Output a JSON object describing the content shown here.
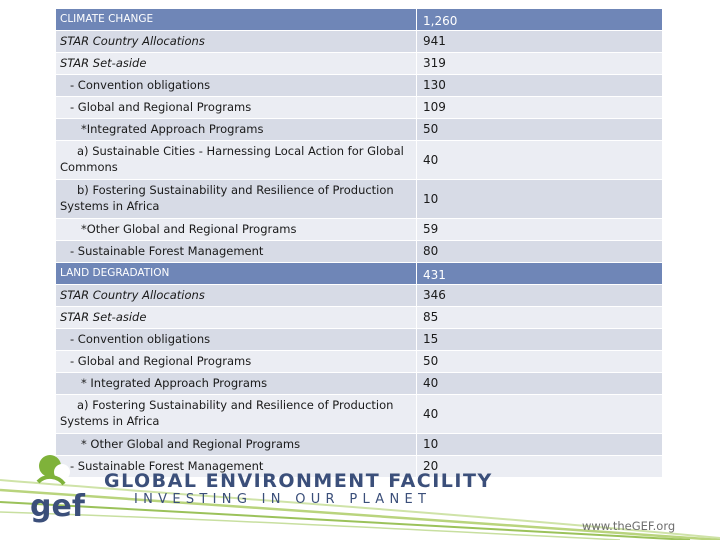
{
  "table": {
    "rows": [
      {
        "label": "CLIMATE CHANGE",
        "value": "1,260"
      },
      {
        "label": "STAR Country Allocations",
        "value": "941"
      },
      {
        "label": "STAR Set-aside",
        "value": "319"
      },
      {
        "label": "- Convention obligations",
        "value": "130"
      },
      {
        "label": "- Global and Regional Programs",
        "value": "109"
      },
      {
        "label": "*Integrated Approach Programs",
        "value": "50"
      },
      {
        "label": "a) Sustainable Cities - Harnessing Local Action for Global Commons",
        "value": "40"
      },
      {
        "label": "b) Fostering Sustainability and Resilience of Production Systems in Africa",
        "value": "10"
      },
      {
        "label": "*Other Global and Regional Programs",
        "value": "59"
      },
      {
        "label": "- Sustainable Forest Management",
        "value": "80"
      },
      {
        "label": "LAND DEGRADATION",
        "value": "431"
      },
      {
        "label": "STAR Country Allocations",
        "value": "346"
      },
      {
        "label": "STAR Set-aside",
        "value": "85"
      },
      {
        "label": "- Convention obligations",
        "value": "15"
      },
      {
        "label": "- Global and Regional Programs",
        "value": "50"
      },
      {
        "label": "* Integrated Approach Programs",
        "value": "40"
      },
      {
        "label": "a) Fostering Sustainability and Resilience of Production Systems in Africa",
        "value": "40"
      },
      {
        "label": "* Other Global and Regional Programs",
        "value": "10"
      },
      {
        "label": "- Sustainable Forest Management",
        "value": "20"
      }
    ]
  },
  "footer": {
    "logo_mark": "gef",
    "org_name": "GLOBAL ENVIRONMENT FACILITY",
    "tagline": "INVESTING IN OUR PLANET",
    "url": "www.theGEF.org"
  },
  "colors": {
    "header_row": "#6f86b7",
    "row_dark": "#d7dbe6",
    "row_light": "#ebedf3",
    "brand_green": "#7fb23a",
    "brand_blue": "#3b4f7a"
  }
}
